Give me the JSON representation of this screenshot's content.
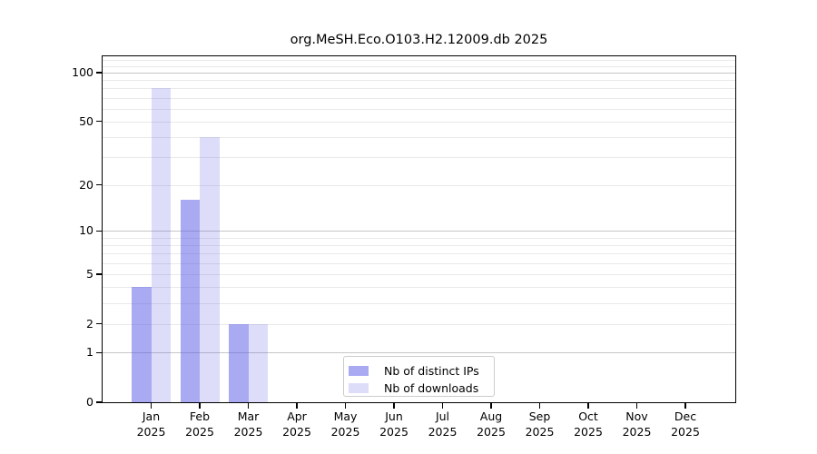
{
  "chart_data": {
    "type": "bar",
    "title": "org.MeSH.Eco.O103.H2.12009.db 2025",
    "months": [
      "Jan",
      "Feb",
      "Mar",
      "Apr",
      "May",
      "Jun",
      "Jul",
      "Aug",
      "Sep",
      "Oct",
      "Nov",
      "Dec"
    ],
    "year": "2025",
    "series": [
      {
        "name": "Nb of distinct IPs",
        "color": "rgba(85,85,232,0.5)",
        "values": [
          4,
          16,
          2,
          0,
          0,
          0,
          0,
          0,
          0,
          0,
          0,
          0
        ]
      },
      {
        "name": "Nb of downloads",
        "color": "rgba(85,85,232,0.2)",
        "values": [
          80,
          40,
          2,
          0,
          0,
          0,
          0,
          0,
          0,
          0,
          0,
          0
        ]
      }
    ],
    "yscale": "log1p",
    "ylim": [
      0,
      126
    ],
    "yticks": [
      0,
      1,
      2,
      5,
      10,
      20,
      50,
      100
    ],
    "grid": {
      "major_lines": [
        1,
        10,
        100
      ],
      "minor_lines": [
        2,
        3,
        4,
        5,
        6,
        7,
        8,
        9,
        20,
        30,
        40,
        50,
        60,
        70,
        80,
        90,
        110,
        120
      ]
    },
    "legend": {
      "location": "lower center",
      "border_color": "#cccccc"
    }
  }
}
